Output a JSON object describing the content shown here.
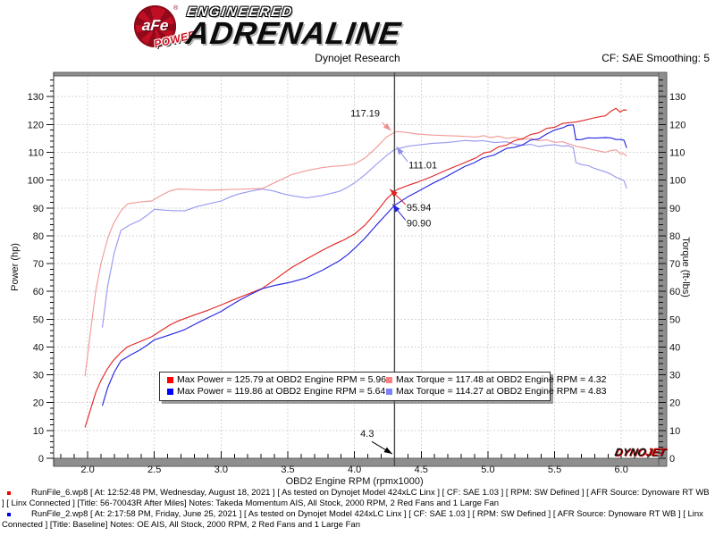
{
  "header": {
    "logo": {
      "afe": "aFe",
      "reg": "®",
      "power": "POWER",
      "engineered": "ENGINEERED",
      "adrenaline": "ADRENALINE"
    },
    "subtitle": "Dynojet Research",
    "smoothing_label": "CF: SAE Smoothing: 5"
  },
  "chart_data": {
    "type": "line",
    "xlabel": "OBD2 Engine RPM (rpmx1000)",
    "ylabel_left": "Power (hp)",
    "ylabel_right": "Torque (ft-lbs)",
    "x_range": [
      1.745,
      6.28
    ],
    "y_range": [
      0,
      137.46
    ],
    "x_major_ticks": [
      2,
      2.5,
      3,
      3.5,
      4,
      4.5,
      5,
      5.5,
      6
    ],
    "x_minor_step": 0.1,
    "y_major_ticks": [
      0,
      10,
      20,
      30,
      40,
      50,
      60,
      70,
      80,
      90,
      100,
      110,
      120,
      130
    ],
    "y_minor_step": 2,
    "grid": "dashed",
    "cursor": {
      "x": 4.3,
      "label": "4.3",
      "text_at": [
        4.095,
        7.7
      ],
      "from": [
        4.13,
        6.0
      ],
      "tip": [
        4.283,
        1.6
      ]
    },
    "series": [
      {
        "name": "torque-after",
        "color": "#f29a9a",
        "axis": "torque",
        "points": [
          [
            1.98,
            29.5
          ],
          [
            2.02,
            45.0
          ],
          [
            2.06,
            60.0
          ],
          [
            2.1,
            70.0
          ],
          [
            2.15,
            79.0
          ],
          [
            2.19,
            84.0
          ],
          [
            2.25,
            89.0
          ],
          [
            2.3,
            91.5
          ],
          [
            2.4,
            92.2
          ],
          [
            2.48,
            92.5
          ],
          [
            2.55,
            94.5
          ],
          [
            2.62,
            96.2
          ],
          [
            2.68,
            96.8
          ],
          [
            2.8,
            96.6
          ],
          [
            2.9,
            96.4
          ],
          [
            3.0,
            96.5
          ],
          [
            3.1,
            96.7
          ],
          [
            3.2,
            96.8
          ],
          [
            3.31,
            97.0
          ],
          [
            3.42,
            99.5
          ],
          [
            3.53,
            102.0
          ],
          [
            3.65,
            103.5
          ],
          [
            3.76,
            104.5
          ],
          [
            3.85,
            105.0
          ],
          [
            3.92,
            105.2
          ],
          [
            4.0,
            105.8
          ],
          [
            4.08,
            108.0
          ],
          [
            4.16,
            111.5
          ],
          [
            4.24,
            115.5
          ],
          [
            4.3,
            117.19
          ],
          [
            4.32,
            117.48
          ],
          [
            4.4,
            117.1
          ],
          [
            4.47,
            116.6
          ],
          [
            4.58,
            116.2
          ],
          [
            4.69,
            116.0
          ],
          [
            4.8,
            115.8
          ],
          [
            4.91,
            115.5
          ],
          [
            4.97,
            116.0
          ],
          [
            5.02,
            115.3
          ],
          [
            5.08,
            115.8
          ],
          [
            5.14,
            115.0
          ],
          [
            5.2,
            115.4
          ],
          [
            5.26,
            114.6
          ],
          [
            5.32,
            115.0
          ],
          [
            5.38,
            114.2
          ],
          [
            5.44,
            114.5
          ],
          [
            5.5,
            113.6
          ],
          [
            5.56,
            113.8
          ],
          [
            5.62,
            112.8
          ],
          [
            5.66,
            112.2
          ],
          [
            5.72,
            111.6
          ],
          [
            5.78,
            111.0
          ],
          [
            5.84,
            110.4
          ],
          [
            5.88,
            110.0
          ],
          [
            5.92,
            110.6
          ],
          [
            5.96,
            110.9
          ],
          [
            5.99,
            109.6
          ],
          [
            6.02,
            109.4
          ],
          [
            6.04,
            108.7
          ]
        ]
      },
      {
        "name": "torque-baseline",
        "color": "#9a9af2",
        "axis": "torque",
        "points": [
          [
            2.11,
            47.0
          ],
          [
            2.15,
            62.0
          ],
          [
            2.2,
            74.0
          ],
          [
            2.25,
            82.0
          ],
          [
            2.32,
            84.0
          ],
          [
            2.39,
            85.5
          ],
          [
            2.45,
            87.5
          ],
          [
            2.5,
            89.5
          ],
          [
            2.58,
            89.2
          ],
          [
            2.66,
            89.0
          ],
          [
            2.73,
            89.0
          ],
          [
            2.82,
            90.5
          ],
          [
            2.91,
            91.5
          ],
          [
            3.0,
            92.5
          ],
          [
            3.07,
            94.0
          ],
          [
            3.13,
            95.0
          ],
          [
            3.22,
            96.0
          ],
          [
            3.31,
            96.8
          ],
          [
            3.4,
            96.0
          ],
          [
            3.47,
            95.0
          ],
          [
            3.53,
            94.4
          ],
          [
            3.64,
            93.6
          ],
          [
            3.76,
            94.5
          ],
          [
            3.89,
            96.0
          ],
          [
            3.95,
            97.5
          ],
          [
            4.0,
            99.0
          ],
          [
            4.08,
            102.0
          ],
          [
            4.16,
            105.5
          ],
          [
            4.24,
            108.8
          ],
          [
            4.3,
            111.01
          ],
          [
            4.4,
            112.2
          ],
          [
            4.47,
            112.6
          ],
          [
            4.58,
            113.2
          ],
          [
            4.69,
            113.5
          ],
          [
            4.76,
            113.9
          ],
          [
            4.83,
            114.27
          ],
          [
            4.9,
            114.0
          ],
          [
            4.96,
            114.2
          ],
          [
            5.05,
            113.5
          ],
          [
            5.14,
            113.8
          ],
          [
            5.2,
            112.9
          ],
          [
            5.26,
            112.5
          ],
          [
            5.32,
            112.9
          ],
          [
            5.38,
            112.1
          ],
          [
            5.44,
            112.5
          ],
          [
            5.5,
            112.7
          ],
          [
            5.56,
            112.2
          ],
          [
            5.6,
            112.4
          ],
          [
            5.64,
            111.6
          ],
          [
            5.66,
            106.3
          ],
          [
            5.7,
            105.6
          ],
          [
            5.75,
            105.2
          ],
          [
            5.8,
            104.2
          ],
          [
            5.84,
            103.6
          ],
          [
            5.88,
            103.0
          ],
          [
            5.92,
            102.2
          ],
          [
            5.96,
            101.0
          ],
          [
            6.0,
            100.3
          ],
          [
            6.02,
            99.8
          ],
          [
            6.04,
            97.0
          ]
        ]
      },
      {
        "name": "power-after",
        "color": "#e22828",
        "axis": "power",
        "points": [
          [
            1.98,
            11.1
          ],
          [
            2.02,
            17.3
          ],
          [
            2.06,
            23.5
          ],
          [
            2.1,
            28.0
          ],
          [
            2.15,
            32.3
          ],
          [
            2.19,
            35.0
          ],
          [
            2.25,
            38.1
          ],
          [
            2.3,
            40.1
          ],
          [
            2.4,
            42.1
          ],
          [
            2.48,
            43.7
          ],
          [
            2.55,
            45.9
          ],
          [
            2.62,
            48.0
          ],
          [
            2.68,
            49.4
          ],
          [
            2.8,
            51.5
          ],
          [
            2.9,
            53.2
          ],
          [
            3.0,
            55.1
          ],
          [
            3.1,
            57.1
          ],
          [
            3.2,
            59.0
          ],
          [
            3.31,
            61.1
          ],
          [
            3.42,
            64.8
          ],
          [
            3.53,
            68.6
          ],
          [
            3.65,
            71.9
          ],
          [
            3.76,
            74.8
          ],
          [
            3.85,
            77.0
          ],
          [
            3.92,
            78.5
          ],
          [
            4.0,
            80.6
          ],
          [
            4.08,
            83.9
          ],
          [
            4.16,
            88.3
          ],
          [
            4.24,
            93.2
          ],
          [
            4.3,
            95.94
          ],
          [
            4.32,
            96.6
          ],
          [
            4.4,
            98.1
          ],
          [
            4.47,
            99.2
          ],
          [
            4.58,
            101.3
          ],
          [
            4.69,
            103.6
          ],
          [
            4.8,
            105.8
          ],
          [
            4.91,
            108.0
          ],
          [
            4.97,
            109.8
          ],
          [
            5.02,
            110.2
          ],
          [
            5.08,
            112.0
          ],
          [
            5.14,
            112.6
          ],
          [
            5.2,
            114.2
          ],
          [
            5.26,
            114.9
          ],
          [
            5.32,
            116.4
          ],
          [
            5.38,
            117.0
          ],
          [
            5.44,
            118.6
          ],
          [
            5.5,
            119.0
          ],
          [
            5.56,
            120.4
          ],
          [
            5.62,
            120.7
          ],
          [
            5.66,
            120.9
          ],
          [
            5.72,
            121.5
          ],
          [
            5.78,
            122.2
          ],
          [
            5.84,
            122.8
          ],
          [
            5.88,
            123.1
          ],
          [
            5.92,
            124.7
          ],
          [
            5.96,
            125.79
          ],
          [
            5.99,
            124.5
          ],
          [
            6.02,
            125.3
          ],
          [
            6.04,
            125.1
          ]
        ]
      },
      {
        "name": "power-baseline",
        "color": "#2828e0",
        "axis": "power",
        "points": [
          [
            2.11,
            18.9
          ],
          [
            2.15,
            25.4
          ],
          [
            2.2,
            31.0
          ],
          [
            2.25,
            35.1
          ],
          [
            2.32,
            37.1
          ],
          [
            2.39,
            38.9
          ],
          [
            2.45,
            40.8
          ],
          [
            2.5,
            42.6
          ],
          [
            2.58,
            43.8
          ],
          [
            2.66,
            45.1
          ],
          [
            2.73,
            46.3
          ],
          [
            2.82,
            48.6
          ],
          [
            2.91,
            50.7
          ],
          [
            3.0,
            52.8
          ],
          [
            3.07,
            54.9
          ],
          [
            3.13,
            56.6
          ],
          [
            3.22,
            58.9
          ],
          [
            3.31,
            61.0
          ],
          [
            3.4,
            62.1
          ],
          [
            3.47,
            62.8
          ],
          [
            3.53,
            63.4
          ],
          [
            3.64,
            64.9
          ],
          [
            3.76,
            67.6
          ],
          [
            3.89,
            71.1
          ],
          [
            3.95,
            73.3
          ],
          [
            4.0,
            75.4
          ],
          [
            4.08,
            79.2
          ],
          [
            4.16,
            83.6
          ],
          [
            4.24,
            87.8
          ],
          [
            4.3,
            90.9
          ],
          [
            4.4,
            94.0
          ],
          [
            4.47,
            95.8
          ],
          [
            4.58,
            98.7
          ],
          [
            4.69,
            101.3
          ],
          [
            4.76,
            103.2
          ],
          [
            4.83,
            105.0
          ],
          [
            4.9,
            106.3
          ],
          [
            4.96,
            107.9
          ],
          [
            5.05,
            109.1
          ],
          [
            5.14,
            111.4
          ],
          [
            5.2,
            111.8
          ],
          [
            5.26,
            112.7
          ],
          [
            5.32,
            114.4
          ],
          [
            5.38,
            114.8
          ],
          [
            5.44,
            116.6
          ],
          [
            5.5,
            118.0
          ],
          [
            5.56,
            118.8
          ],
          [
            5.6,
            119.7
          ],
          [
            5.64,
            119.86
          ],
          [
            5.66,
            114.5
          ],
          [
            5.7,
            114.6
          ],
          [
            5.75,
            115.2
          ],
          [
            5.8,
            115.1
          ],
          [
            5.84,
            115.2
          ],
          [
            5.88,
            115.3
          ],
          [
            5.92,
            115.2
          ],
          [
            5.96,
            114.6
          ],
          [
            6.0,
            114.6
          ],
          [
            6.02,
            114.3
          ],
          [
            6.04,
            111.6
          ]
        ]
      }
    ],
    "annotations": [
      {
        "label": "117.19",
        "color": "#ef8e8e",
        "anchor": "end",
        "text_at": [
          4.19,
          122.8
        ],
        "from": [
          4.205,
          120.8
        ],
        "tip": [
          4.275,
          117.8
        ]
      },
      {
        "label": "111.01",
        "color": "#8f8fe8",
        "anchor": "start",
        "text_at": [
          4.405,
          104.2
        ],
        "from": [
          4.398,
          106.6
        ],
        "tip": [
          4.315,
          112.0
        ]
      },
      {
        "label": "95.94",
        "color": "#dd2222",
        "anchor": "start",
        "text_at": [
          4.39,
          88.9
        ],
        "from": [
          4.383,
          91.2
        ],
        "tip": [
          4.265,
          96.8
        ]
      },
      {
        "label": "90.90",
        "color": "#2222dd",
        "anchor": "start",
        "text_at": [
          4.39,
          83.4
        ],
        "from": [
          4.383,
          85.6
        ],
        "tip": [
          4.285,
          91.3
        ]
      }
    ],
    "legend": {
      "items": [
        {
          "color": "#ff0000",
          "label": "Max Power = 125.79 at OBD2 Engine RPM = 5.96"
        },
        {
          "color": "#ff8080",
          "label": "Max Torque = 117.48 at OBD2 Engine RPM = 4.32"
        },
        {
          "color": "#0000ff",
          "label": "Max Power = 119.86 at OBD2 Engine RPM = 5.64"
        },
        {
          "color": "#8080ff",
          "label": "Max Torque = 114.27 at OBD2 Engine RPM = 4.83"
        }
      ]
    },
    "branding": {
      "dyno": "DYNO",
      "jet": "JET"
    }
  },
  "footer": {
    "runs": [
      {
        "bullet_color": "#ee0000",
        "text": "RunFile_6.wp8 [ At: 12:52:48 PM, Wednesday, August 18, 2021 ] [ As tested on Dynojet Model 424xLC Linx ] [ CF: SAE 1.03 ] [ RPM: SW Defined ] [ AFR Source: Dynoware RT WB ] [ Linx Connected ] [Title: 56-70043R After Miles]  Notes: Takeda Momentum AIS, All Stock, 2000 RPM, 2 Red Fans and 1 Large Fan"
      },
      {
        "bullet_color": "#0000ee",
        "text": "RunFile_2.wp8 [ At: 2:17:58 PM, Friday, June 25, 2021 ] [ As tested on Dynojet Model 424xLC Linx ] [ CF: SAE 1.03 ] [ RPM: SW Defined ] [ AFR Source: Dynoware RT WB ] [ Linx Connected ] [Title: Baseline]  Notes: OE AIS, All Stock, 2000 RPM, 2 Red Fans and 1 Large Fan"
      }
    ]
  }
}
